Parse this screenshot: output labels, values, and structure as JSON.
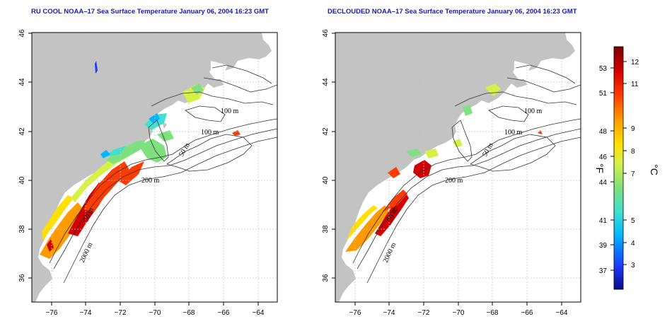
{
  "maps": [
    {
      "title": "RU COOL NOAA–17 Sea Surface Temperature January 06, 2004 16:23 GMT",
      "contour_labels": [
        "100 m",
        "100 m",
        "50 m",
        "200 m",
        "2000 m",
        "50 m"
      ]
    },
    {
      "title": "DECLOUDED NOAA–17 Sea Surface Temperature January 06, 2004 16:23 GMT",
      "contour_labels": [
        "100 m",
        "100 m",
        "50 m",
        "200 m",
        "2000 m",
        "50 m"
      ]
    }
  ],
  "axes": {
    "lon_ticks": [
      "−76",
      "−74",
      "−72",
      "−70",
      "−68",
      "−66",
      "−64"
    ],
    "lat_ticks": [
      "36",
      "38",
      "40",
      "42",
      "44",
      "46"
    ]
  },
  "colorbar": {
    "fahrenheit_ticks": [
      "53",
      "51",
      "48",
      "46",
      "44",
      "41",
      "39",
      "37"
    ],
    "celsius_ticks": [
      "12",
      "11",
      "9",
      "8",
      "7",
      "5",
      "4",
      "3"
    ],
    "fahrenheit_unit": "°F",
    "celsius_unit": "°C",
    "colors": [
      "#0a0a8c",
      "#1c3cff",
      "#00b4ff",
      "#40e0d0",
      "#7fe07f",
      "#d7f046",
      "#ffe000",
      "#ff9a00",
      "#ff3c00",
      "#d20000",
      "#780000"
    ]
  },
  "colors": {
    "land": "#c3c3c3",
    "title": "#1a1ab4",
    "contour": "#333333",
    "grid": "#c8c8c8"
  }
}
